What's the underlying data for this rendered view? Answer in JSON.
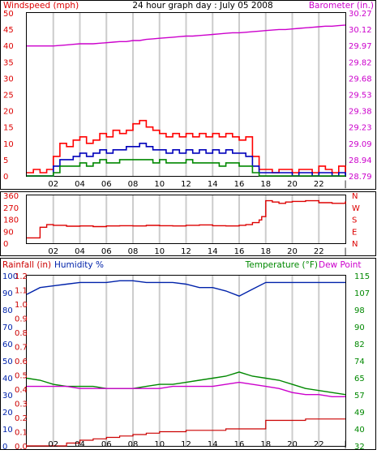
{
  "header": {
    "left_label": "Windspeed (mph)",
    "title": "24 hour graph day : July 05 2008",
    "right_label": "Barometer (in.)"
  },
  "legend_bottom": {
    "rainfall": "Rainfall (in)",
    "humidity": "Humidity %",
    "temperature": "Temperature (°F)",
    "dewpoint": "Dew Point"
  },
  "colors": {
    "wind_max": "#ff0000",
    "wind_avg": "#0000bb",
    "wind_min": "#008800",
    "barometer": "#cc00cc",
    "direction": "#dd0000",
    "humidity": "#0022aa",
    "temperature": "#008800",
    "dewpoint": "#cc00cc",
    "rain": "#cc0000",
    "grid": "#cccccc",
    "frame": "#000000"
  },
  "chart_data": [
    {
      "type": "line",
      "title": "24 hour graph day : July 05 2008",
      "xlabel": "",
      "x_ticks": [
        "02",
        "04",
        "06",
        "08",
        "10",
        "12",
        "14",
        "16",
        "18",
        "20",
        "22",
        "|"
      ],
      "ylabel": "Windspeed (mph)",
      "ylim": [
        0,
        50
      ],
      "y_ticks": [
        "0",
        "5",
        "10",
        "15",
        "20",
        "25",
        "30",
        "35",
        "40",
        "45",
        "50"
      ],
      "y2label": "Barometer (in.)",
      "y2lim": [
        28.79,
        30.27
      ],
      "y2_ticks": [
        "28.79",
        "28.94",
        "29.09",
        "29.23",
        "29.38",
        "29.53",
        "29.68",
        "29.82",
        "29.97",
        "30.12",
        "30.27"
      ],
      "x_hours": [
        0,
        0.5,
        1,
        1.5,
        2,
        2.5,
        3,
        3.5,
        4,
        4.5,
        5,
        5.5,
        6,
        6.5,
        7,
        7.5,
        8,
        8.5,
        9,
        9.5,
        10,
        10.5,
        11,
        11.5,
        12,
        12.5,
        13,
        13.5,
        14,
        14.5,
        15,
        15.5,
        16,
        16.5,
        17,
        17.5,
        18,
        18.5,
        19,
        19.5,
        20,
        20.5,
        21,
        21.5,
        22,
        22.5,
        23,
        23.5,
        24
      ],
      "series": [
        {
          "values": [
            1,
            2,
            1,
            2,
            6,
            10,
            9,
            11,
            12,
            10,
            11,
            13,
            12,
            14,
            13,
            14,
            16,
            17,
            15,
            14,
            13,
            12,
            13,
            12,
            13,
            12,
            13,
            12,
            13,
            12,
            13,
            12,
            11,
            12,
            6,
            2,
            2,
            1,
            2,
            2,
            1,
            2,
            2,
            1,
            3,
            2,
            1,
            3,
            1
          ]
        },
        {
          "values": [
            0,
            0,
            0,
            0,
            3,
            5,
            5,
            6,
            7,
            6,
            7,
            8,
            7,
            8,
            8,
            9,
            9,
            10,
            9,
            8,
            8,
            7,
            8,
            7,
            8,
            7,
            8,
            7,
            8,
            7,
            8,
            7,
            7,
            6,
            3,
            1,
            1,
            1,
            1,
            1,
            0,
            1,
            1,
            0,
            1,
            1,
            0,
            1,
            0
          ]
        },
        {
          "values": [
            0,
            0,
            0,
            0,
            1,
            3,
            3,
            3,
            4,
            3,
            4,
            5,
            4,
            4,
            5,
            5,
            5,
            5,
            5,
            4,
            5,
            4,
            4,
            4,
            5,
            4,
            4,
            4,
            4,
            3,
            4,
            4,
            3,
            3,
            1,
            0,
            0,
            0,
            0,
            0,
            0,
            0,
            0,
            0,
            0,
            0,
            0,
            0,
            0
          ]
        },
        {
          "values": [
            29.97,
            29.97,
            29.97,
            29.97,
            29.97,
            29.975,
            29.98,
            29.985,
            29.99,
            29.99,
            29.99,
            29.995,
            30.0,
            30.005,
            30.01,
            30.01,
            30.02,
            30.02,
            30.03,
            30.035,
            30.04,
            30.045,
            30.05,
            30.055,
            30.06,
            30.06,
            30.065,
            30.07,
            30.075,
            30.08,
            30.085,
            30.09,
            30.09,
            30.095,
            30.1,
            30.105,
            30.11,
            30.115,
            30.12,
            30.12,
            30.125,
            30.13,
            30.135,
            30.14,
            30.145,
            30.15,
            30.15,
            30.155,
            30.16
          ]
        }
      ]
    },
    {
      "type": "line",
      "ylim": [
        0,
        360
      ],
      "y_ticks": [
        "0",
        "90",
        "180",
        "270",
        "360"
      ],
      "y2_ticks": [
        "N",
        "E",
        "S",
        "W",
        "N"
      ],
      "x_hours": [
        0,
        0.5,
        1,
        1.5,
        2,
        3,
        4,
        5,
        6,
        7,
        8,
        9,
        10,
        11,
        12,
        13,
        14,
        15,
        16,
        16.5,
        17,
        17.5,
        17.7,
        18,
        18.5,
        19,
        19.5,
        20,
        21,
        22,
        23,
        24
      ],
      "series": [
        {
          "values": [
            40,
            40,
            120,
            140,
            135,
            128,
            130,
            125,
            130,
            132,
            130,
            134,
            132,
            130,
            135,
            138,
            132,
            130,
            135,
            140,
            155,
            175,
            200,
            320,
            310,
            300,
            310,
            315,
            320,
            305,
            300,
            315
          ]
        }
      ]
    },
    {
      "type": "line",
      "y_ticks": [
        "0",
        "10",
        "20",
        "30",
        "40",
        "50",
        "60",
        "70",
        "80",
        "90",
        "100"
      ],
      "y_rain_ticks": [
        "0.0",
        "0.1",
        "0.2",
        "0.3",
        "0.4",
        "0.5",
        "0.6",
        "0.7",
        "0.8",
        "0.9",
        "1.0",
        "1.1",
        "1.2"
      ],
      "y2_ticks": [
        "32",
        "40",
        "49",
        "57",
        "65",
        "74",
        "82",
        "90",
        "98",
        "107",
        "115"
      ],
      "ylim": [
        0,
        100
      ],
      "y_rain_lim": [
        0,
        1.2
      ],
      "y2lim": [
        32,
        115
      ],
      "x_hours": [
        0,
        1,
        2,
        3,
        4,
        5,
        6,
        7,
        8,
        9,
        10,
        11,
        12,
        13,
        14,
        15,
        16,
        17,
        18,
        19,
        20,
        21,
        22,
        23,
        24
      ],
      "series": [
        {
          "values": [
            0.0,
            0.0,
            0.0,
            0.02,
            0.04,
            0.05,
            0.06,
            0.07,
            0.08,
            0.09,
            0.1,
            0.1,
            0.11,
            0.11,
            0.11,
            0.12,
            0.12,
            0.12,
            0.18,
            0.18,
            0.18,
            0.19,
            0.19,
            0.19,
            0.19
          ]
        },
        {
          "values": [
            89,
            93,
            94,
            95,
            96,
            96,
            96,
            97,
            97,
            96,
            96,
            96,
            95,
            93,
            93,
            91,
            88,
            92,
            96,
            96,
            96,
            96,
            96,
            96,
            96
          ]
        },
        {
          "values": [
            65,
            64,
            62,
            61,
            61,
            61,
            60,
            60,
            60,
            61,
            62,
            62,
            63,
            64,
            65,
            66,
            68,
            66,
            65,
            64,
            62,
            60,
            59,
            58,
            57
          ]
        },
        {
          "values": [
            61,
            61,
            61,
            61,
            60,
            60,
            60,
            60,
            60,
            60,
            60,
            61,
            61,
            61,
            61,
            62,
            63,
            62,
            61,
            60,
            58,
            57,
            57,
            56,
            56
          ]
        }
      ]
    }
  ]
}
